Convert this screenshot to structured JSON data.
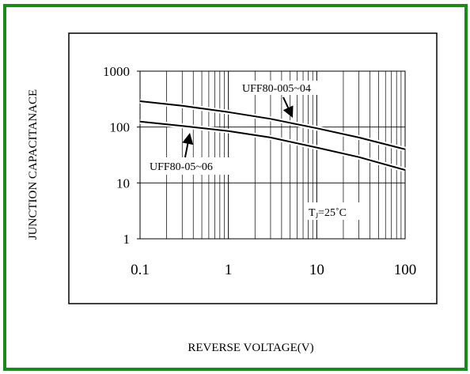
{
  "page": {
    "border_color": "#1a8a1a"
  },
  "chart_data": {
    "type": "line",
    "title": "",
    "xlabel": "REVERSE VOLTAGE(V)",
    "ylabel": "JUNCTION CAPACITANACE",
    "x_scale": "log",
    "y_scale": "log",
    "xlim": [
      0.1,
      100
    ],
    "ylim": [
      1,
      1000
    ],
    "x_ticks": [
      "0.1",
      "1",
      "10",
      "100"
    ],
    "y_ticks": [
      "1",
      "10",
      "100",
      "1000"
    ],
    "grid": true,
    "series": [
      {
        "name": "UFF80-005~04",
        "x": [
          0.1,
          0.3,
          1,
          3,
          10,
          30,
          100
        ],
        "y": [
          290,
          240,
          185,
          140,
          95,
          65,
          40
        ]
      },
      {
        "name": "UFF80-05~06",
        "x": [
          0.1,
          0.3,
          1,
          3,
          10,
          30,
          100
        ],
        "y": [
          125,
          105,
          85,
          65,
          43,
          29,
          17
        ]
      }
    ],
    "annotations": [
      {
        "text": "UFF80-005~04",
        "series": "UFF80-005~04",
        "x": 6,
        "y": 100
      },
      {
        "text": "UFF80-05~06",
        "series": "UFF80-05~06",
        "x": 0.35,
        "y": 92
      }
    ],
    "condition_label": {
      "main": "T",
      "sub": "J",
      "rest": "=25˚C"
    }
  }
}
